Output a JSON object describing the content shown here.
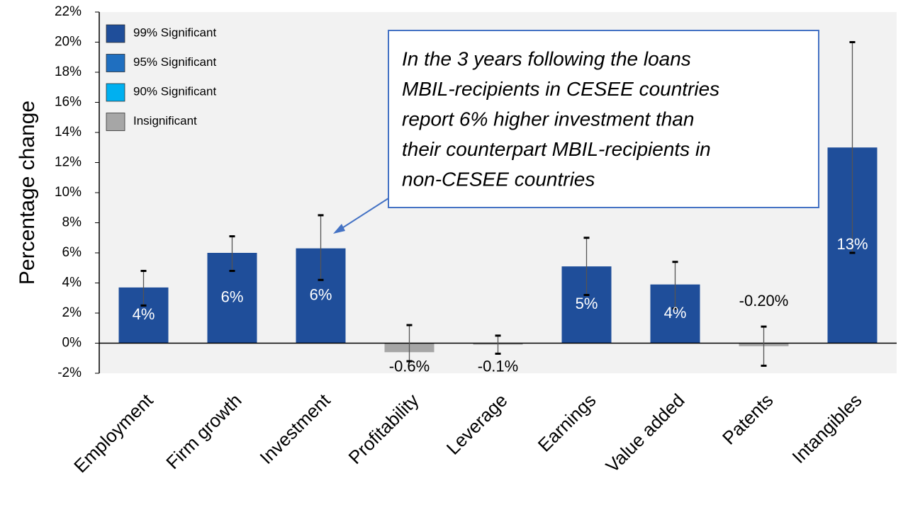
{
  "chart_data": {
    "type": "bar",
    "ylabel": "Percentage change",
    "categories": [
      "Employment",
      "Firm growth",
      "Investment",
      "Profitability",
      "Leverage",
      "Earnings",
      "Value added",
      "Patents",
      "Intangibles"
    ],
    "values": [
      3.7,
      6.0,
      6.3,
      -0.6,
      -0.1,
      5.1,
      3.9,
      -0.2,
      13.0
    ],
    "value_labels": [
      "4%",
      "6%",
      "6%",
      "-0.6%",
      "-0.1%",
      "5%",
      "4%",
      "-0.20%",
      "13%"
    ],
    "ci": [
      [
        2.5,
        4.8
      ],
      [
        4.8,
        7.1
      ],
      [
        4.2,
        8.5
      ],
      [
        -1.2,
        1.2
      ],
      [
        -0.7,
        0.5
      ],
      [
        3.2,
        7.0
      ],
      [
        2.3,
        5.4
      ],
      [
        -1.5,
        1.1
      ],
      [
        6.0,
        20.0
      ]
    ],
    "colors": [
      "#1f4e9a",
      "#1f4e9a",
      "#1f4e9a",
      "#a6a6a6",
      "#a6a6a6",
      "#1f4e9a",
      "#1f4e9a",
      "#a6a6a6",
      "#1f4e9a"
    ],
    "legend": [
      {
        "name": "99% Significant",
        "color": "#1f4e9a"
      },
      {
        "name": "95% Significant",
        "color": "#1f6fc0"
      },
      {
        "name": "90% Significant",
        "color": "#00b0f0"
      },
      {
        "name": "Insignificant",
        "color": "#a6a6a6"
      }
    ],
    "annotation": [
      "In the 3 years following the loans",
      "MBIL-recipients in CESEE countries",
      "report 6% higher investment than",
      "their counterpart MBIL-recipients in",
      "non-CESEE countries"
    ],
    "ylim": [
      -2,
      22
    ],
    "yticks": [
      {
        "value": -2,
        "label": "-2%"
      },
      {
        "value": 0,
        "label": "0%"
      },
      {
        "value": 2,
        "label": "2%"
      },
      {
        "value": 4,
        "label": "4%"
      },
      {
        "value": 6,
        "label": "6%"
      },
      {
        "value": 8,
        "label": "8%"
      },
      {
        "value": 10,
        "label": "10%"
      },
      {
        "value": 12,
        "label": "12%"
      },
      {
        "value": 14,
        "label": "14%"
      },
      {
        "value": 16,
        "label": "16%"
      },
      {
        "value": 18,
        "label": "18%"
      },
      {
        "value": 20,
        "label": "20%"
      },
      {
        "value": 22,
        "label": "22%"
      }
    ]
  }
}
